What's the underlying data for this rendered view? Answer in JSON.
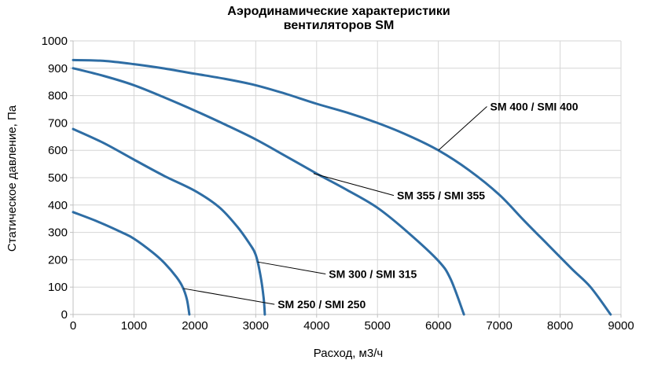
{
  "title": {
    "line1": "Аэродинамические характеристики",
    "line2": "вентиляторов SM"
  },
  "colors": {
    "curve": "#2E6DA4",
    "grid": "#D6D6D6",
    "axis": "#C0C0C0",
    "text": "#000000",
    "annotation_line": "#000000",
    "background": "#FFFFFF"
  },
  "chart_data": {
    "type": "line",
    "title": "Аэродинамические характеристики вентиляторов SM",
    "xlabel": "Расход, м3/ч",
    "ylabel": "Статическое давление, Па",
    "xlim": [
      0,
      9000
    ],
    "ylim": [
      0,
      1000
    ],
    "x_ticks": [
      0,
      1000,
      2000,
      3000,
      4000,
      5000,
      6000,
      7000,
      8000,
      9000
    ],
    "y_ticks": [
      0,
      100,
      200,
      300,
      400,
      500,
      600,
      700,
      800,
      900,
      1000
    ],
    "grid": true,
    "legend_position": "none",
    "series": [
      {
        "name": "SM 400 / SMI 400",
        "points": [
          [
            0,
            930
          ],
          [
            500,
            927
          ],
          [
            1000,
            915
          ],
          [
            1500,
            899
          ],
          [
            2000,
            880
          ],
          [
            2500,
            861
          ],
          [
            3000,
            838
          ],
          [
            3500,
            806
          ],
          [
            4000,
            770
          ],
          [
            4500,
            738
          ],
          [
            5000,
            700
          ],
          [
            5500,
            655
          ],
          [
            6000,
            600
          ],
          [
            6500,
            528
          ],
          [
            7000,
            438
          ],
          [
            7400,
            345
          ],
          [
            7800,
            255
          ],
          [
            8200,
            165
          ],
          [
            8500,
            100
          ],
          [
            8830,
            0
          ]
        ]
      },
      {
        "name": "SM 355 / SMI 355",
        "points": [
          [
            0,
            900
          ],
          [
            500,
            872
          ],
          [
            1000,
            838
          ],
          [
            1500,
            793
          ],
          [
            2000,
            745
          ],
          [
            2500,
            694
          ],
          [
            3000,
            640
          ],
          [
            3500,
            578
          ],
          [
            4000,
            515
          ],
          [
            4500,
            455
          ],
          [
            5000,
            390
          ],
          [
            5500,
            300
          ],
          [
            6000,
            196
          ],
          [
            6200,
            130
          ],
          [
            6420,
            0
          ]
        ]
      },
      {
        "name": "SM 300 / SMI 315",
        "points": [
          [
            0,
            678
          ],
          [
            500,
            627
          ],
          [
            1000,
            566
          ],
          [
            1500,
            506
          ],
          [
            2000,
            452
          ],
          [
            2400,
            392
          ],
          [
            2700,
            320
          ],
          [
            2900,
            258
          ],
          [
            3000,
            218
          ],
          [
            3080,
            140
          ],
          [
            3130,
            60
          ],
          [
            3150,
            0
          ]
        ]
      },
      {
        "name": "SM 250 / SMI 250",
        "points": [
          [
            0,
            374
          ],
          [
            400,
            340
          ],
          [
            800,
            300
          ],
          [
            1000,
            277
          ],
          [
            1300,
            228
          ],
          [
            1500,
            188
          ],
          [
            1700,
            136
          ],
          [
            1800,
            100
          ],
          [
            1870,
            55
          ],
          [
            1910,
            0
          ]
        ]
      }
    ],
    "annotations": [
      {
        "text": "SM 400 / SMI 400",
        "attach": [
          6000,
          600
        ],
        "anchor": [
          6850,
          760
        ]
      },
      {
        "text": "SM 355 / SMI 355",
        "attach": [
          3950,
          515
        ],
        "anchor": [
          5320,
          435
        ]
      },
      {
        "text": "SM 300 / SMI 315",
        "attach": [
          3030,
          192
        ],
        "anchor": [
          4200,
          148
        ]
      },
      {
        "text": "SM 250 / SMI 250",
        "attach": [
          1810,
          95
        ],
        "anchor": [
          3360,
          37
        ]
      }
    ]
  }
}
